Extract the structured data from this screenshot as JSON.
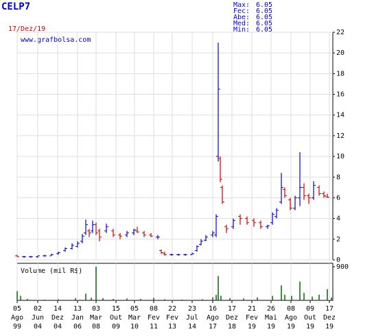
{
  "chart_data": {
    "type": "ohlc",
    "title": "CELP7",
    "date": "17/Dez/19",
    "source": "www.grafbolsa.com",
    "stats": [
      {
        "label": "Max:",
        "value": 6.05
      },
      {
        "label": "Fec:",
        "value": 6.05
      },
      {
        "label": "Abe:",
        "value": 6.05
      },
      {
        "label": "Med:",
        "value": 6.05
      },
      {
        "label": "Min:",
        "value": 6.05
      }
    ],
    "xlim": [
      0,
      460
    ],
    "xticks": [
      {
        "value": 0,
        "label": [
          "05",
          "Ago",
          "99"
        ]
      },
      {
        "value": 30,
        "label": [
          "02",
          "Jun",
          "04"
        ]
      },
      {
        "value": 59,
        "label": [
          "14",
          "Dez",
          "04"
        ]
      },
      {
        "value": 88,
        "label": [
          "13",
          "Jan",
          "06"
        ]
      },
      {
        "value": 115,
        "label": [
          "03",
          "Mar",
          "08"
        ]
      },
      {
        "value": 144,
        "label": [
          "15",
          "Out",
          "09"
        ]
      },
      {
        "value": 171,
        "label": [
          "05",
          "Mar",
          "10"
        ]
      },
      {
        "value": 199,
        "label": [
          "08",
          "Fev",
          "11"
        ]
      },
      {
        "value": 226,
        "label": [
          "22",
          "Fev",
          "13"
        ]
      },
      {
        "value": 255,
        "label": [
          "23",
          "Jul",
          "14"
        ]
      },
      {
        "value": 285,
        "label": [
          "16",
          "Ago",
          "17"
        ]
      },
      {
        "value": 313,
        "label": [
          "17",
          "Dez",
          "18"
        ]
      },
      {
        "value": 342,
        "label": [
          "21",
          "Fev",
          "19"
        ]
      },
      {
        "value": 370,
        "label": [
          "26",
          "Mai",
          "19"
        ]
      },
      {
        "value": 399,
        "label": [
          "08",
          "Ago",
          "19"
        ]
      },
      {
        "value": 427,
        "label": [
          "09",
          "Out",
          "19"
        ]
      },
      {
        "value": 455,
        "label": [
          "17",
          "Dez",
          "19"
        ]
      }
    ],
    "ylim": [
      0,
      22
    ],
    "yticks": [
      0,
      2,
      4,
      6,
      8,
      10,
      12,
      14,
      16,
      18,
      20,
      22
    ],
    "grid": true,
    "up_color": "#0000cc",
    "down_color": "#cc0000",
    "series": {
      "x": [
        0,
        10,
        20,
        30,
        40,
        50,
        60,
        70,
        80,
        88,
        95,
        100,
        105,
        110,
        115,
        120,
        130,
        140,
        150,
        160,
        170,
        175,
        185,
        195,
        205,
        210,
        215,
        225,
        235,
        245,
        255,
        262,
        268,
        275,
        285,
        290,
        293,
        296,
        299,
        305,
        315,
        325,
        335,
        345,
        355,
        365,
        372,
        378,
        385,
        390,
        398,
        405,
        412,
        418,
        425,
        432,
        440,
        447,
        452
      ],
      "open": [
        0.4,
        0.3,
        0.3,
        0.3,
        0.4,
        0.4,
        0.6,
        0.9,
        1.1,
        1.3,
        1.8,
        2.6,
        2.8,
        2.8,
        3.4,
        2.8,
        2.8,
        2.8,
        2.4,
        2.4,
        2.6,
        2.8,
        2.6,
        2.4,
        2.2,
        0.9,
        0.6,
        0.5,
        0.5,
        0.5,
        0.5,
        0.9,
        1.5,
        1.9,
        2.4,
        2.4,
        10.0,
        9.8,
        7.0,
        3.2,
        3.2,
        4.2,
        4.0,
        3.8,
        3.6,
        3.2,
        3.6,
        4.2,
        5.6,
        6.8,
        5.8,
        5.0,
        6.0,
        7.0,
        6.2,
        6.0,
        7.0,
        6.4,
        6.1
      ],
      "high": [
        0.5,
        0.4,
        0.4,
        0.4,
        0.5,
        0.6,
        0.8,
        1.2,
        1.6,
        1.8,
        2.5,
        3.9,
        3.0,
        3.8,
        3.6,
        3.0,
        3.5,
        3.0,
        2.6,
        2.8,
        3.0,
        3.2,
        2.8,
        2.6,
        2.4,
        1.0,
        0.8,
        0.6,
        0.6,
        0.6,
        0.7,
        1.4,
        2.0,
        2.4,
        2.8,
        4.4,
        21.0,
        10.0,
        7.2,
        3.4,
        4.0,
        4.4,
        4.2,
        4.0,
        3.8,
        3.4,
        4.6,
        5.0,
        8.4,
        7.0,
        6.0,
        6.2,
        10.4,
        7.4,
        6.4,
        7.6,
        7.2,
        6.6,
        6.4
      ],
      "low": [
        0.3,
        0.2,
        0.2,
        0.2,
        0.3,
        0.4,
        0.5,
        0.8,
        1.0,
        1.2,
        1.6,
        2.4,
        2.2,
        2.6,
        2.4,
        1.8,
        2.6,
        2.2,
        2.0,
        2.2,
        2.4,
        2.6,
        2.2,
        2.2,
        2.0,
        0.6,
        0.4,
        0.4,
        0.4,
        0.4,
        0.5,
        0.8,
        1.4,
        1.8,
        2.2,
        2.2,
        9.5,
        7.5,
        5.4,
        2.6,
        3.0,
        3.4,
        3.4,
        3.2,
        3.0,
        3.0,
        3.4,
        4.0,
        5.4,
        6.0,
        4.8,
        4.8,
        5.2,
        5.8,
        5.4,
        5.8,
        6.2,
        6.0,
        6.0
      ],
      "close": [
        0.3,
        0.3,
        0.3,
        0.4,
        0.4,
        0.5,
        0.7,
        1.1,
        1.4,
        1.6,
        2.3,
        3.4,
        2.6,
        3.4,
        2.6,
        2.2,
        3.2,
        2.4,
        2.3,
        2.6,
        2.9,
        2.7,
        2.4,
        2.3,
        2.2,
        0.7,
        0.5,
        0.5,
        0.5,
        0.5,
        0.6,
        1.3,
        1.8,
        2.2,
        2.6,
        4.2,
        16.5,
        7.8,
        5.6,
        3.0,
        3.8,
        4.0,
        3.6,
        3.6,
        3.2,
        3.3,
        4.4,
        4.8,
        7.0,
        6.2,
        5.0,
        6.0,
        7.0,
        6.2,
        6.0,
        7.2,
        6.4,
        6.2,
        6.05
      ]
    },
    "volume": {
      "label": "Volume (mil R$)",
      "color": "#006600",
      "ylim": [
        0,
        900
      ],
      "yticks": [
        900
      ],
      "x": [
        0,
        5,
        15,
        40,
        60,
        85,
        100,
        108,
        115,
        125,
        140,
        160,
        180,
        199,
        215,
        240,
        270,
        285,
        290,
        293,
        297,
        310,
        330,
        350,
        372,
        385,
        390,
        400,
        412,
        418,
        430,
        440,
        452,
        458
      ],
      "values": [
        250,
        120,
        40,
        20,
        30,
        60,
        180,
        70,
        900,
        60,
        40,
        50,
        40,
        70,
        30,
        20,
        30,
        80,
        150,
        650,
        120,
        60,
        50,
        80,
        120,
        400,
        150,
        120,
        500,
        200,
        100,
        150,
        300,
        80
      ]
    }
  }
}
